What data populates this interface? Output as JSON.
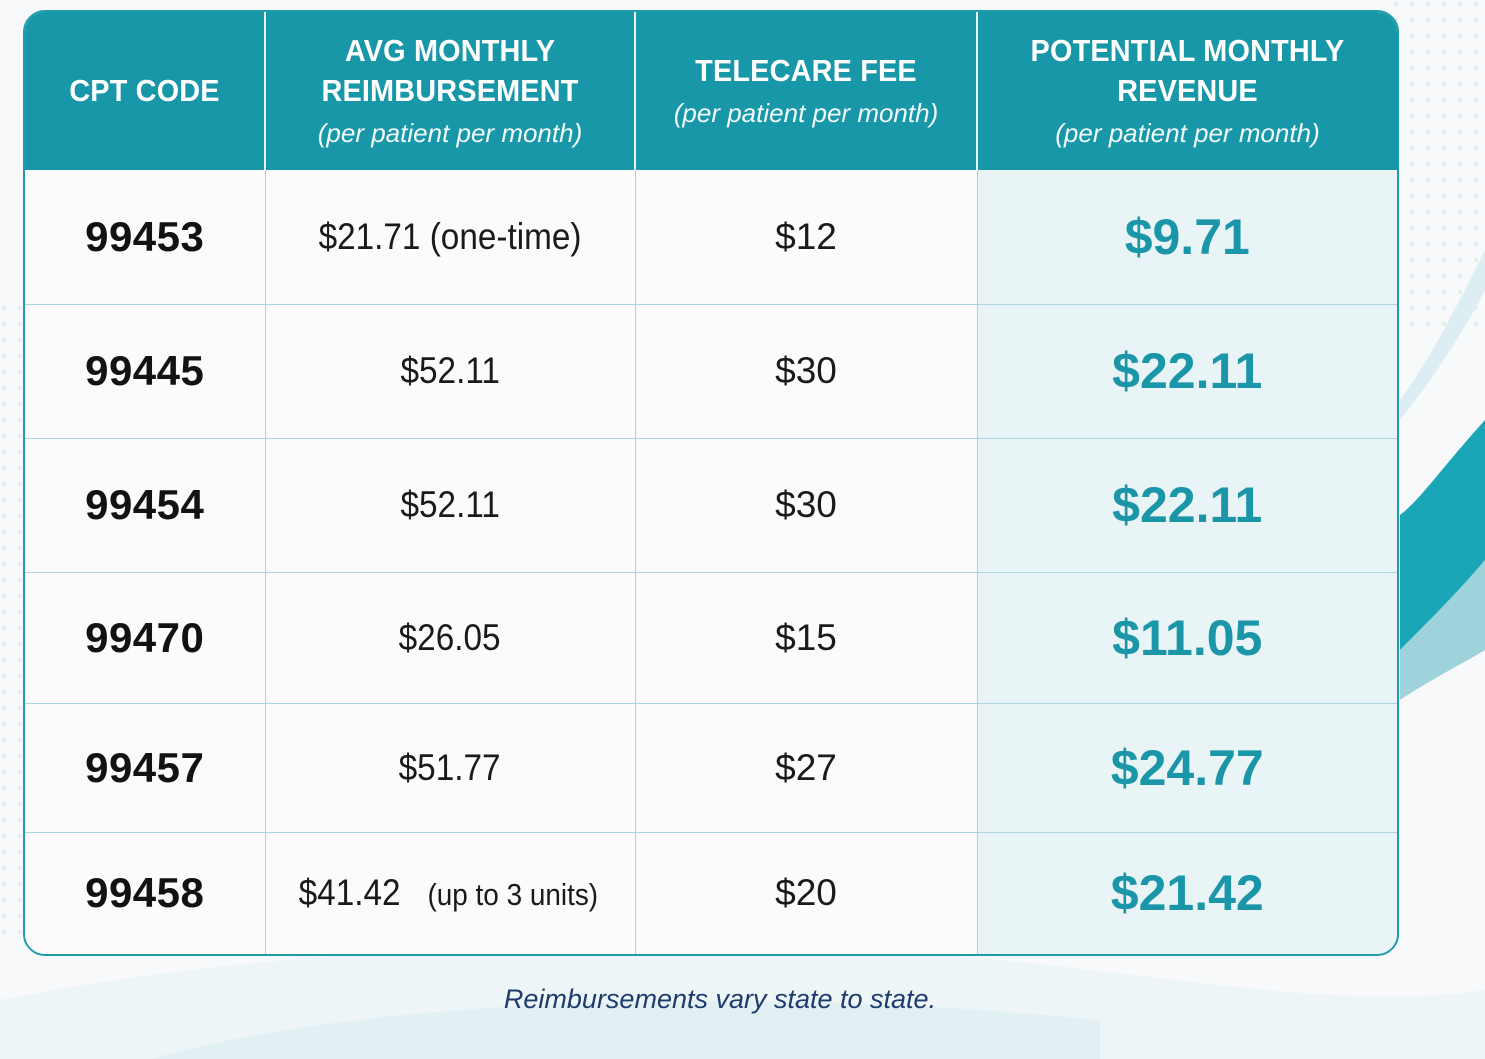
{
  "colors": {
    "header_bg": "#1897a9",
    "accent": "#1b96a8",
    "revenue_bg": "#e8f4f6",
    "footnote": "#1e3a6e"
  },
  "table": {
    "headers": [
      {
        "title": "CPT CODE",
        "subtitle": ""
      },
      {
        "title": "AVG MONTHLY REIMBURSEMENT",
        "subtitle": "(per patient per month)"
      },
      {
        "title": "TELECARE FEE",
        "subtitle": "(per patient per month)"
      },
      {
        "title": "POTENTIAL MONTHLY REVENUE",
        "subtitle": "(per patient per month)"
      }
    ],
    "rows": [
      {
        "code": "99453",
        "reimbursement": "$21.71 (one-time)",
        "reimbursement_note": "",
        "fee": "$12",
        "revenue": "$9.71"
      },
      {
        "code": "99445",
        "reimbursement": "$52.11",
        "reimbursement_note": "",
        "fee": "$30",
        "revenue": "$22.11"
      },
      {
        "code": "99454",
        "reimbursement": "$52.11",
        "reimbursement_note": "",
        "fee": "$30",
        "revenue": "$22.11"
      },
      {
        "code": "99470",
        "reimbursement": "$26.05",
        "reimbursement_note": "",
        "fee": "$15",
        "revenue": "$11.05"
      },
      {
        "code": "99457",
        "reimbursement": "$51.77",
        "reimbursement_note": "",
        "fee": "$27",
        "revenue": "$24.77"
      },
      {
        "code": "99458",
        "reimbursement": "$41.42",
        "reimbursement_note": "(up to 3 units)",
        "fee": "$20",
        "revenue": "$21.42"
      }
    ]
  },
  "footnote": "Reimbursements vary state to state."
}
